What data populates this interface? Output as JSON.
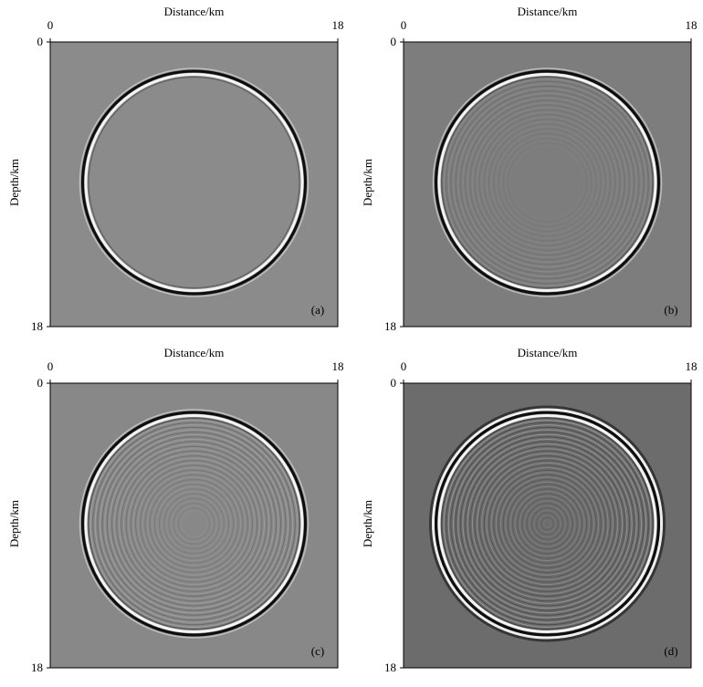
{
  "panels": [
    {
      "x_axis": {
        "label": "Distance/km",
        "ticks": [
          0,
          18
        ]
      },
      "y_axis": {
        "label": "Depth/km",
        "ticks": [
          0,
          18
        ]
      },
      "tag": "(a)"
    },
    {
      "x_axis": {
        "label": "Distance/km",
        "ticks": [
          0,
          18
        ]
      },
      "y_axis": {
        "label": "Depth/km",
        "ticks": [
          0,
          18
        ]
      },
      "tag": "(b)"
    },
    {
      "x_axis": {
        "label": "Distance/km",
        "ticks": [
          0,
          18
        ]
      },
      "y_axis": {
        "label": "Depth/km",
        "ticks": [
          0,
          18
        ]
      },
      "tag": "(c)"
    },
    {
      "x_axis": {
        "label": "Distance/km",
        "ticks": [
          0,
          18
        ]
      },
      "y_axis": {
        "label": "Depth/km",
        "ticks": [
          0,
          18
        ]
      },
      "tag": "(d)"
    }
  ]
}
